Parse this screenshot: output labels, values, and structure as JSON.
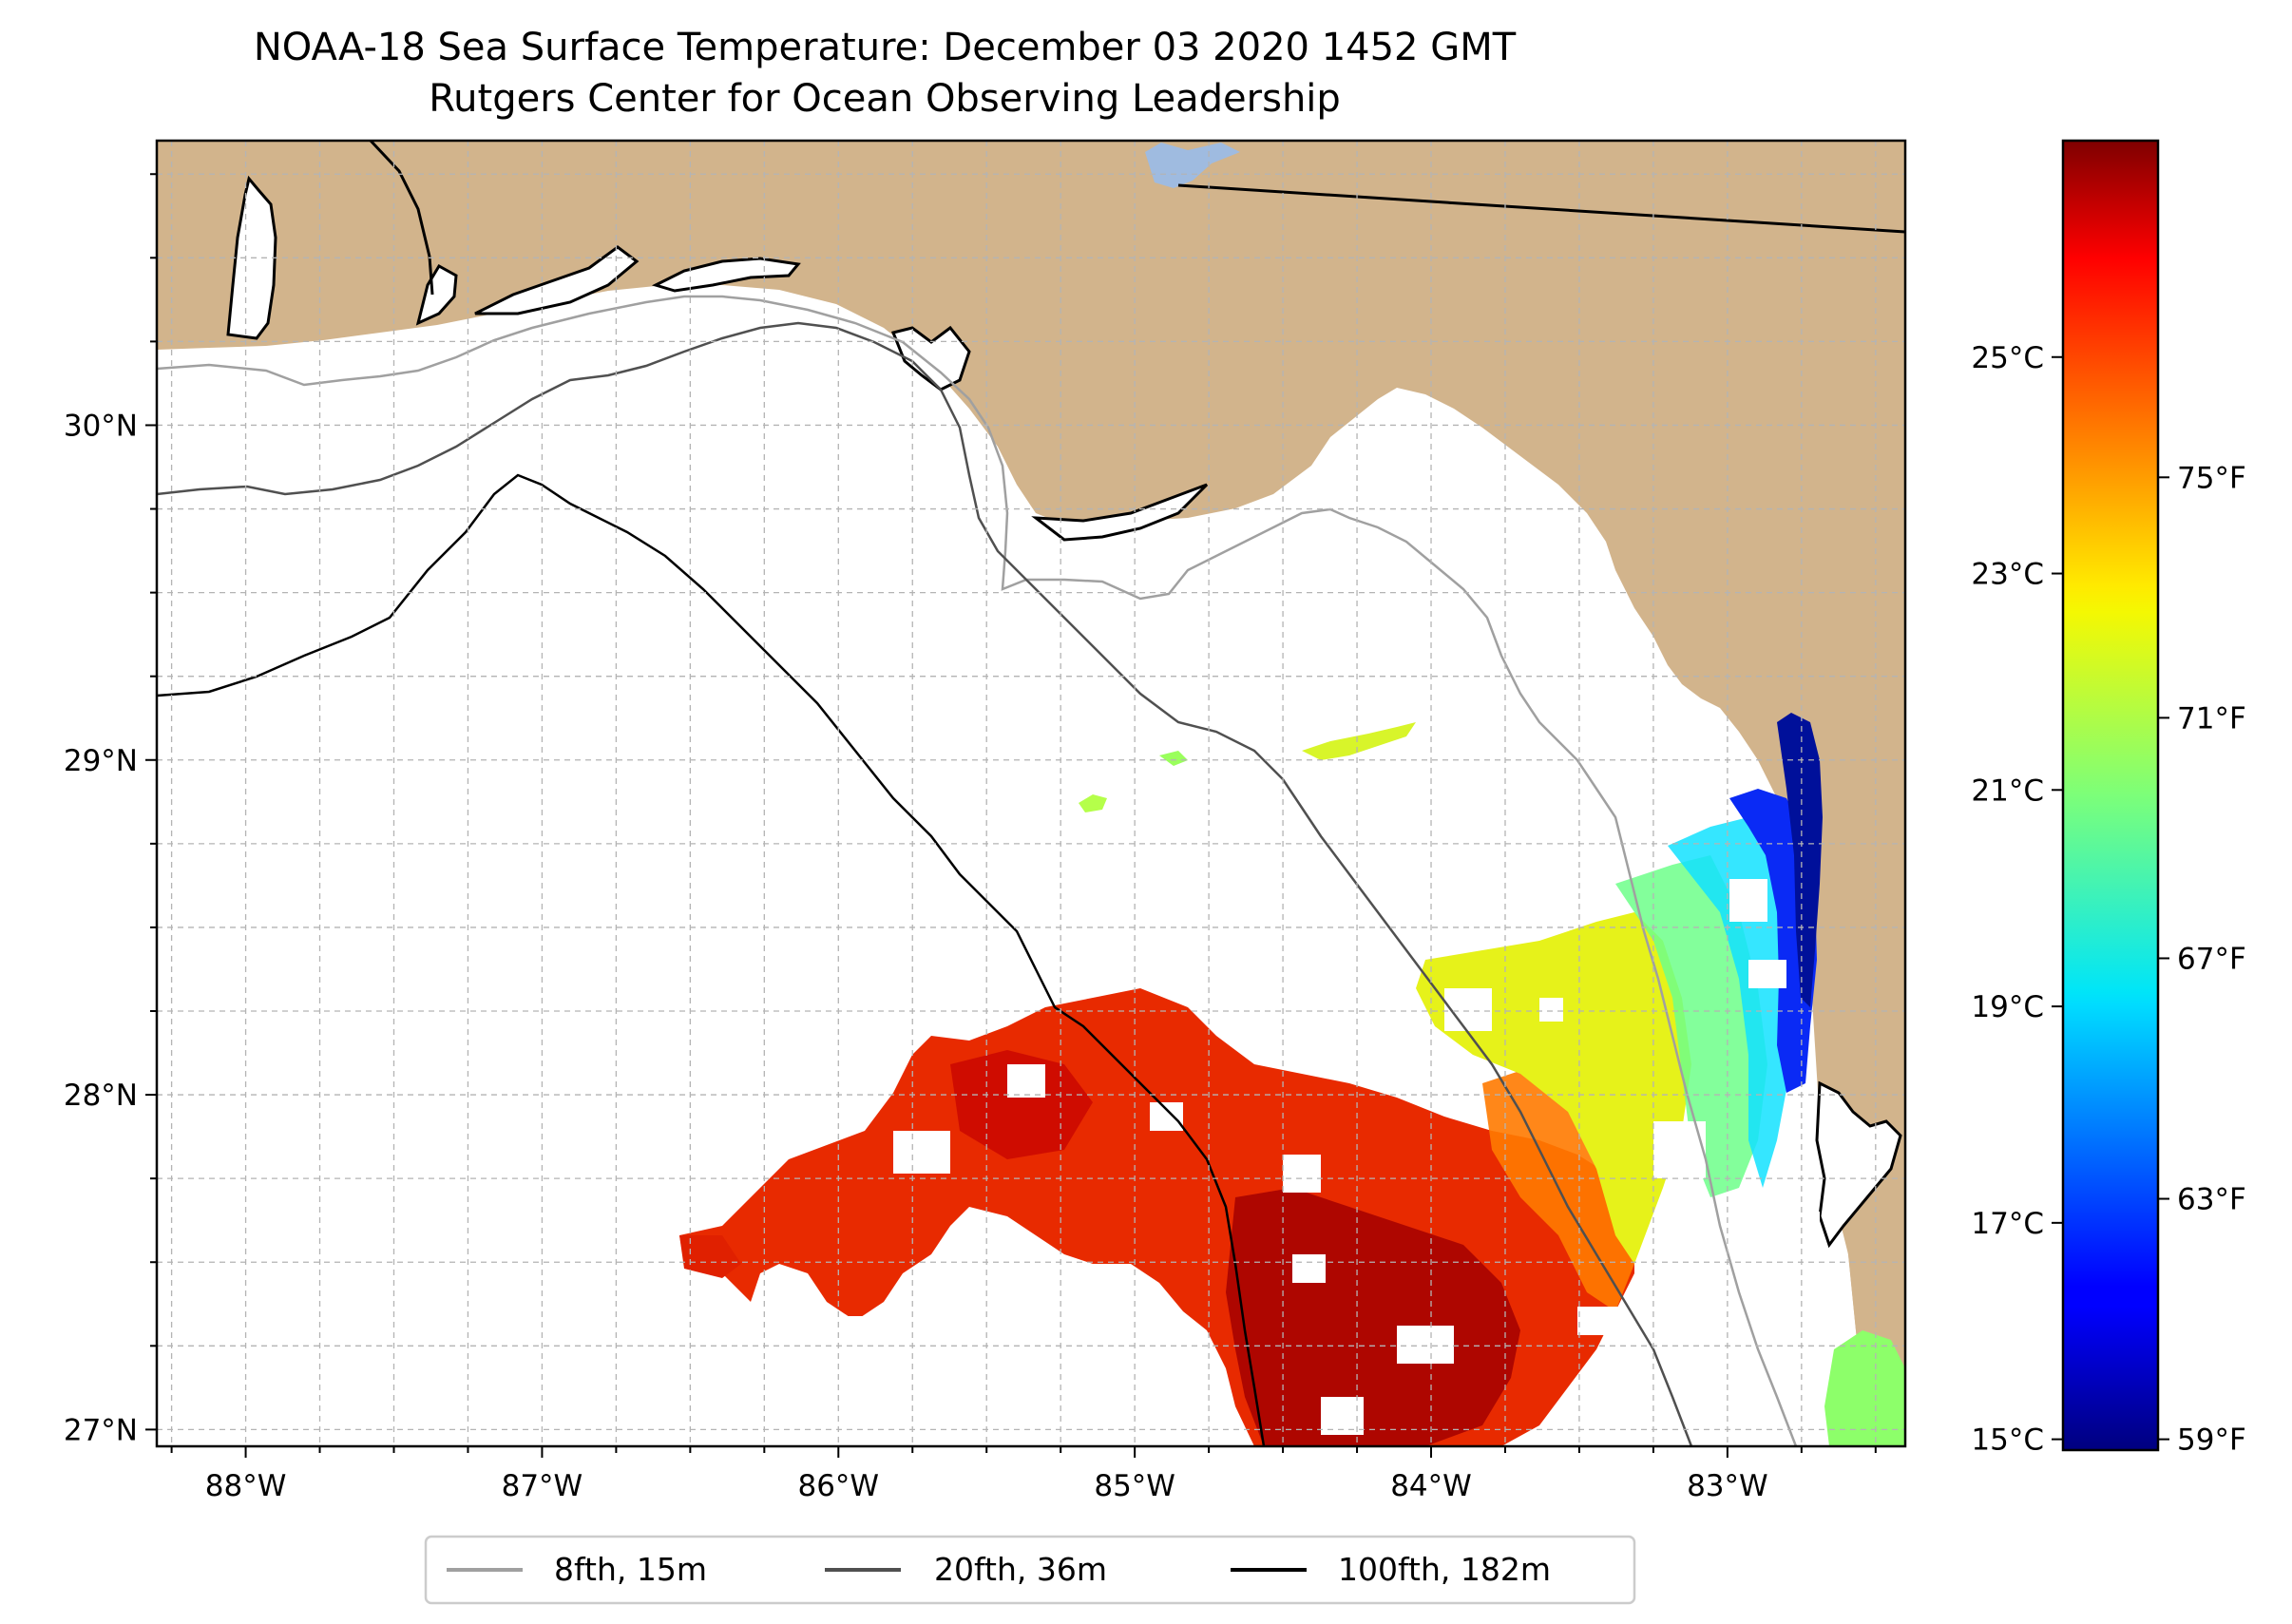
{
  "title": {
    "line1": "NOAA-18 Sea Surface Temperature: December 03 2020 1452 GMT",
    "line2": "Rutgers Center for Ocean Observing Leadership"
  },
  "map": {
    "lon_range": [
      -88.3,
      -82.4
    ],
    "lat_range": [
      26.95,
      30.85
    ],
    "lon_ticks": [
      {
        "value": -88,
        "label": "88°W"
      },
      {
        "value": -87,
        "label": "87°W"
      },
      {
        "value": -86,
        "label": "86°W"
      },
      {
        "value": -85,
        "label": "85°W"
      },
      {
        "value": -84,
        "label": "84°W"
      },
      {
        "value": -83,
        "label": "83°W"
      }
    ],
    "lat_ticks": [
      {
        "value": 27,
        "label": "27°N"
      },
      {
        "value": 28,
        "label": "28°N"
      },
      {
        "value": 29,
        "label": "29°N"
      },
      {
        "value": 30,
        "label": "30°N"
      }
    ],
    "colors": {
      "land": "#d2b48c",
      "ocean": "#ffffff",
      "lake": "#9fbbe0",
      "grid": "#b4b4b4"
    }
  },
  "colorbar": {
    "celsius_range": [
      14.9,
      27.0
    ],
    "celsius_ticks": [
      {
        "value": 15,
        "label": "15°C"
      },
      {
        "value": 17,
        "label": "17°C"
      },
      {
        "value": 19,
        "label": "19°C"
      },
      {
        "value": 21,
        "label": "21°C"
      },
      {
        "value": 23,
        "label": "23°C"
      },
      {
        "value": 25,
        "label": "25°C"
      }
    ],
    "fahrenheit_ticks": [
      {
        "value": 59,
        "label": "59°F"
      },
      {
        "value": 63,
        "label": "63°F"
      },
      {
        "value": 67,
        "label": "67°F"
      },
      {
        "value": 71,
        "label": "71°F"
      },
      {
        "value": 75,
        "label": "75°F"
      }
    ],
    "colormap": "jet"
  },
  "legend": {
    "entries": [
      {
        "label": "8fth, 15m",
        "color": "#a0a0a0"
      },
      {
        "label": "20fth, 36m",
        "color": "#505050"
      },
      {
        "label": "100fth, 182m",
        "color": "#000000"
      }
    ]
  }
}
